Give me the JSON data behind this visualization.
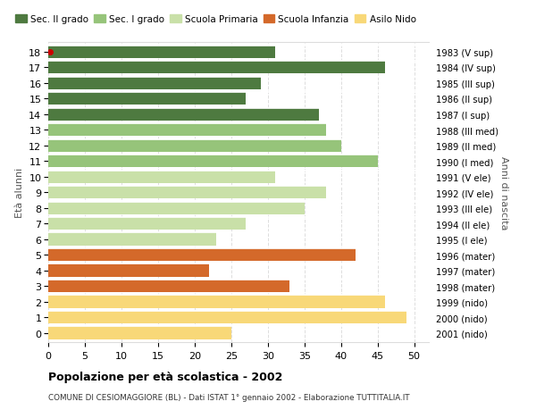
{
  "ages": [
    0,
    1,
    2,
    3,
    4,
    5,
    6,
    7,
    8,
    9,
    10,
    11,
    12,
    13,
    14,
    15,
    16,
    17,
    18
  ],
  "values": [
    25,
    49,
    46,
    33,
    22,
    42,
    23,
    27,
    35,
    38,
    31,
    45,
    40,
    38,
    37,
    27,
    29,
    46,
    31
  ],
  "right_labels": [
    "2001 (nido)",
    "2000 (nido)",
    "1999 (nido)",
    "1998 (mater)",
    "1997 (mater)",
    "1996 (mater)",
    "1995 (I ele)",
    "1994 (II ele)",
    "1993 (III ele)",
    "1992 (IV ele)",
    "1991 (V ele)",
    "1990 (I med)",
    "1989 (II med)",
    "1988 (III med)",
    "1987 (I sup)",
    "1986 (II sup)",
    "1985 (III sup)",
    "1984 (IV sup)",
    "1983 (V sup)"
  ],
  "colors": [
    "#f8d878",
    "#f8d878",
    "#f8d878",
    "#d4692a",
    "#d4692a",
    "#d4692a",
    "#c9e0a8",
    "#c9e0a8",
    "#c9e0a8",
    "#c9e0a8",
    "#c9e0a8",
    "#96c47a",
    "#96c47a",
    "#96c47a",
    "#4e7a40",
    "#4e7a40",
    "#4e7a40",
    "#4e7a40",
    "#4e7a40"
  ],
  "legend_labels": [
    "Sec. II grado",
    "Sec. I grado",
    "Scuola Primaria",
    "Scuola Infanzia",
    "Asilo Nido"
  ],
  "legend_colors": [
    "#4e7a40",
    "#96c47a",
    "#c9e0a8",
    "#d4692a",
    "#f8d878"
  ],
  "ylabel_left": "Età alunni",
  "ylabel_right": "Anni di nascita",
  "title_bold": "Popolazione per età scolastica - 2002",
  "subtitle": "COMUNE DI CESIOMAGGIORE (BL) - Dati ISTAT 1° gennaio 2002 - Elaborazione TUTTITALIA.IT",
  "xlim": [
    0,
    52
  ],
  "xticks": [
    0,
    5,
    10,
    15,
    20,
    25,
    30,
    35,
    40,
    45,
    50
  ],
  "bg_color": "#ffffff",
  "grid_color": "#dddddd",
  "dot_color": "#cc0000",
  "dot_age": 18,
  "bar_height": 0.82
}
